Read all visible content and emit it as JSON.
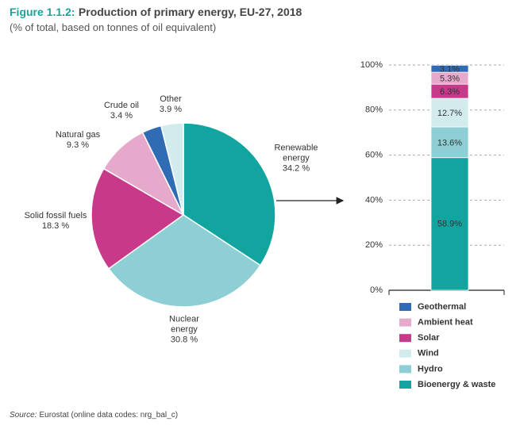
{
  "header": {
    "figure": "Figure 1.1.2:",
    "title": "Production of primary energy, EU-27, 2018",
    "subtitle": "(% of total, based on tonnes of oil equivalent)"
  },
  "chart_data": [
    {
      "type": "pie",
      "categories": [
        "Renewable energy",
        "Nuclear energy",
        "Solid fossil fuels",
        "Natural gas",
        "Crude oil",
        "Other"
      ],
      "values": [
        34.2,
        30.8,
        18.3,
        9.3,
        3.4,
        3.9
      ],
      "value_labels": [
        "34.2 %",
        "30.8 %",
        "18.3 %",
        "9.3 %",
        "3.4 %",
        "3.9 %"
      ],
      "colors": [
        "#12a5a0",
        "#8dcfd4",
        "#c8398a",
        "#e6a9cc",
        "#2f6cb3",
        "#d2ecee"
      ]
    },
    {
      "type": "stacked_bar",
      "series": [
        {
          "name": "Bioenergy & waste",
          "color": "#12a5a0",
          "values": [
            58.9
          ],
          "value_labels": [
            "58.9%"
          ]
        },
        {
          "name": "Hydro",
          "color": "#8dcfd4",
          "values": [
            13.6
          ],
          "value_labels": [
            "13.6%"
          ]
        },
        {
          "name": "Wind",
          "color": "#d2ecee",
          "values": [
            12.7
          ],
          "value_labels": [
            "12.7%"
          ]
        },
        {
          "name": "Solar",
          "color": "#c8398a",
          "values": [
            6.3
          ],
          "value_labels": [
            "6.3%"
          ]
        },
        {
          "name": "Ambient heat",
          "color": "#e6a9cc",
          "values": [
            5.3
          ],
          "value_labels": [
            "5.3%"
          ]
        },
        {
          "name": "Geothermal",
          "color": "#2f6cb3",
          "values": [
            3.1
          ],
          "value_labels": [
            "3.1%"
          ]
        }
      ],
      "ylim": [
        0,
        100
      ],
      "yticks": [
        {
          "value": 0,
          "label": "0%"
        },
        {
          "value": 20,
          "label": "20%"
        },
        {
          "value": 40,
          "label": "40%"
        },
        {
          "value": 60,
          "label": "60%"
        },
        {
          "value": 80,
          "label": "80%"
        },
        {
          "value": 100,
          "label": "100%"
        }
      ],
      "grid": true
    }
  ],
  "source": {
    "label": "Source:",
    "text": "Eurostat (online data codes: nrg_bal_c)"
  }
}
